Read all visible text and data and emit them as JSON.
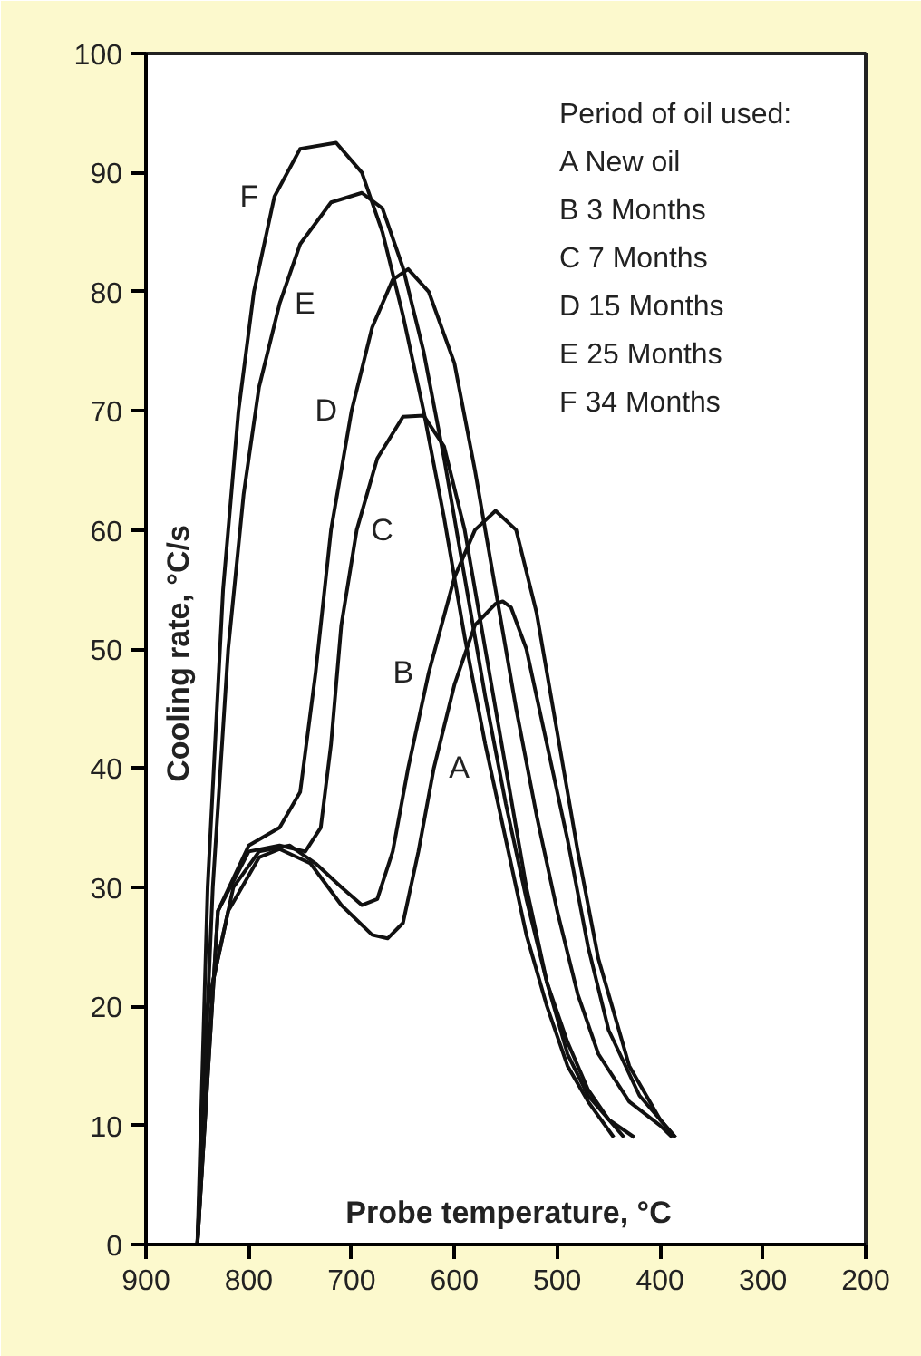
{
  "chart_data": {
    "type": "line",
    "xlabel": "Probe temperature, °C",
    "ylabel": "Cooling rate, °C/s",
    "xlim": [
      900,
      200
    ],
    "xticks": [
      900,
      800,
      700,
      600,
      500,
      400,
      300,
      200
    ],
    "ylim": [
      0,
      100
    ],
    "yticks": [
      0,
      10,
      20,
      30,
      40,
      50,
      60,
      70,
      80,
      90,
      100
    ],
    "grid": false,
    "marker": "none",
    "line_style": "solid",
    "annotations": [
      "Period of oil used:",
      "A   New oil",
      "B   3 Months",
      "C   7 Months",
      "D   15 Months",
      "E   25 Months",
      "F   34 Months"
    ],
    "series": [
      {
        "name": "A",
        "color": "#111111",
        "x": [
          850,
          840,
          820,
          790,
          770,
          740,
          710,
          680,
          665,
          650,
          635,
          620,
          600,
          580,
          560,
          553,
          545,
          530,
          510,
          490,
          470,
          450,
          420,
          385
        ],
        "values": [
          0,
          20,
          28,
          32.5,
          33.2,
          32,
          28.5,
          26,
          25.7,
          27,
          33,
          40,
          47,
          52,
          53.8,
          54,
          53.5,
          50,
          42,
          34,
          25,
          18,
          12.5,
          9
        ]
      },
      {
        "name": "B",
        "color": "#111111",
        "x": [
          850,
          835,
          815,
          790,
          760,
          735,
          710,
          690,
          675,
          660,
          645,
          625,
          600,
          580,
          560,
          540,
          520,
          500,
          480,
          460,
          430,
          400,
          385
        ],
        "values": [
          0,
          22,
          30,
          33,
          33.5,
          32,
          30,
          28.5,
          29,
          33,
          40,
          48,
          56,
          60,
          61.6,
          60,
          53,
          43,
          33,
          24,
          15,
          10.5,
          9
        ]
      },
      {
        "name": "C",
        "color": "#111111",
        "x": [
          850,
          830,
          800,
          770,
          745,
          730,
          720,
          710,
          695,
          675,
          650,
          630,
          610,
          590,
          570,
          550,
          530,
          510,
          490,
          470,
          450,
          425
        ],
        "values": [
          0,
          28,
          33,
          33.5,
          33,
          35,
          42,
          52,
          60,
          66,
          69.5,
          69.6,
          67,
          60,
          50,
          40,
          30,
          22,
          16,
          12.5,
          10.5,
          9
        ]
      },
      {
        "name": "D",
        "color": "#111111",
        "x": [
          850,
          830,
          800,
          770,
          750,
          735,
          720,
          700,
          680,
          660,
          645,
          625,
          600,
          580,
          560,
          540,
          520,
          500,
          480,
          460,
          430,
          400,
          388
        ],
        "values": [
          0,
          28,
          33.5,
          35,
          38,
          48,
          60,
          70,
          77,
          81,
          81.9,
          80,
          74,
          65,
          55,
          45,
          36,
          28,
          21,
          16,
          12,
          10,
          9
        ]
      },
      {
        "name": "E",
        "color": "#111111",
        "x": [
          850,
          835,
          820,
          805,
          790,
          770,
          750,
          720,
          690,
          670,
          650,
          630,
          610,
          590,
          570,
          550,
          530,
          510,
          490,
          470,
          450,
          435
        ],
        "values": [
          0,
          30,
          50,
          63,
          72,
          79,
          84,
          87.5,
          88.3,
          87,
          82,
          75,
          66,
          56,
          46,
          37,
          29,
          22,
          17,
          13,
          10.5,
          9
        ]
      },
      {
        "name": "F",
        "color": "#111111",
        "x": [
          850,
          840,
          825,
          810,
          795,
          775,
          750,
          715,
          690,
          670,
          650,
          630,
          610,
          590,
          570,
          550,
          530,
          510,
          490,
          470,
          445
        ],
        "values": [
          0,
          30,
          55,
          70,
          80,
          88,
          92,
          92.5,
          90,
          85,
          78,
          70,
          61,
          51,
          42,
          34,
          26,
          20,
          15,
          12,
          9
        ]
      }
    ]
  }
}
